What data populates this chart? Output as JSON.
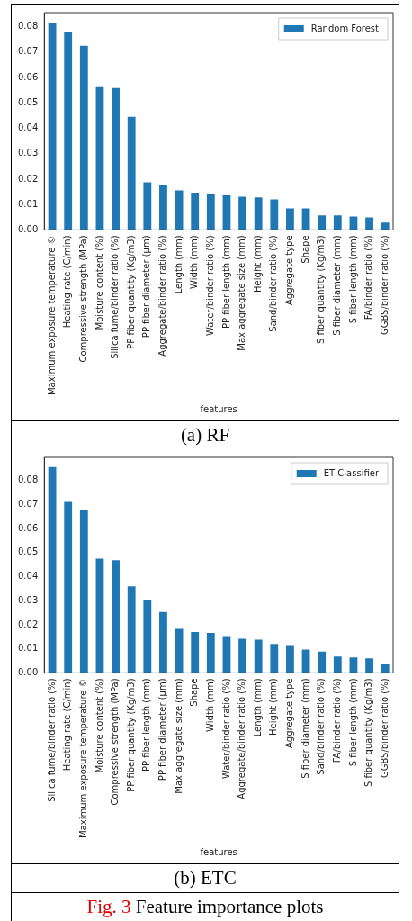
{
  "chart_data": [
    {
      "type": "bar",
      "xlabel": "features",
      "categories": [
        "Maximum exposure temperature ©",
        "Heating rate (C/min)",
        "Compressive strength (MPa)",
        "Moisture content (%)",
        "Silica fume/binder ratio (%)",
        "PP fiber quantity (Kg/m3)",
        "PP fiber diameter (μm)",
        "Aggregate/binder ratio (%)",
        "Length (mm)",
        "Width (mm)",
        "Water/binder ratio (%)",
        "PP fiber length (mm)",
        "Max aggregate size (mm)",
        "Height (mm)",
        "Sand/binder ratio (%)",
        "Aggregate type",
        "Shape",
        "S fiber quantity (Kg/m3)",
        "S fiber diameter (mm)",
        "S fiber length (mm)",
        "FA/binder ratio (%)",
        "GGBS/binder ratio (%)"
      ],
      "series": [
        {
          "name": "Random Forest",
          "color": "#1f77b4",
          "values": [
            0.0815,
            0.078,
            0.0725,
            0.0562,
            0.0558,
            0.0445,
            0.0187,
            0.0178,
            0.0155,
            0.0147,
            0.0143,
            0.0136,
            0.0131,
            0.0128,
            0.012,
            0.0085,
            0.0085,
            0.0057,
            0.0057,
            0.0053,
            0.0049,
            0.0029
          ]
        }
      ],
      "ylim": [
        0,
        0.0855
      ],
      "yticks": [
        {
          "value": 0,
          "label": "0.00"
        },
        {
          "value": 0.01,
          "label": "0.01"
        },
        {
          "value": 0.02,
          "label": "0.02"
        },
        {
          "value": 0.03,
          "label": "0.03"
        },
        {
          "value": 0.04,
          "label": "0.04"
        },
        {
          "value": 0.05,
          "label": "0.05"
        },
        {
          "value": 0.06,
          "label": "0.06"
        },
        {
          "value": 0.07,
          "label": "0.07"
        },
        {
          "value": 0.08,
          "label": "0.08"
        }
      ],
      "legend": "top right",
      "grid": false,
      "annotations": [
        "(a) RF"
      ]
    },
    {
      "type": "bar",
      "xlabel": "features",
      "categories": [
        "Silica fume/binder ratio (%)",
        "Heating rate (C/min)",
        "Maximum exposure temperature ©",
        "Moisture content (%)",
        "Compressive strength (MPa)",
        "PP fiber quantity (Kg/m3)",
        "PP fiber length (mm)",
        "PP fiber diameter (μm)",
        "Max aggregate size (mm)",
        "Shape",
        "Width (mm)",
        "Water/binder ratio (%)",
        "Aggregate/binder ratio (%)",
        "Length (mm)",
        "Height (mm)",
        "Aggregate type",
        "S fiber diameter (mm)",
        "Sand/binder ratio (%)",
        "FA/binder ratio (%)",
        "S fiber length (mm)",
        "S fiber quantity (Kg/m3)",
        "GGBS/binder ratio (%)"
      ],
      "series": [
        {
          "name": "ET Classifier",
          "color": "#1f77b4",
          "values": [
            0.0856,
            0.0711,
            0.0679,
            0.0475,
            0.0468,
            0.036,
            0.0303,
            0.0253,
            0.0183,
            0.017,
            0.0166,
            0.0153,
            0.0142,
            0.0138,
            0.012,
            0.0116,
            0.0097,
            0.0088,
            0.0068,
            0.0064,
            0.006,
            0.0038
          ]
        }
      ],
      "ylim": [
        0,
        0.0896
      ],
      "yticks": [
        {
          "value": 0,
          "label": "0.00"
        },
        {
          "value": 0.01,
          "label": "0.01"
        },
        {
          "value": 0.02,
          "label": "0.02"
        },
        {
          "value": 0.03,
          "label": "0.03"
        },
        {
          "value": 0.04,
          "label": "0.04"
        },
        {
          "value": 0.05,
          "label": "0.05"
        },
        {
          "value": 0.06,
          "label": "0.06"
        },
        {
          "value": 0.07,
          "label": "0.07"
        },
        {
          "value": 0.08,
          "label": "0.08"
        }
      ],
      "legend": "top right",
      "grid": false,
      "annotations": [
        "(b) ETC",
        "Fig. 3 Feature importance plots"
      ]
    }
  ]
}
